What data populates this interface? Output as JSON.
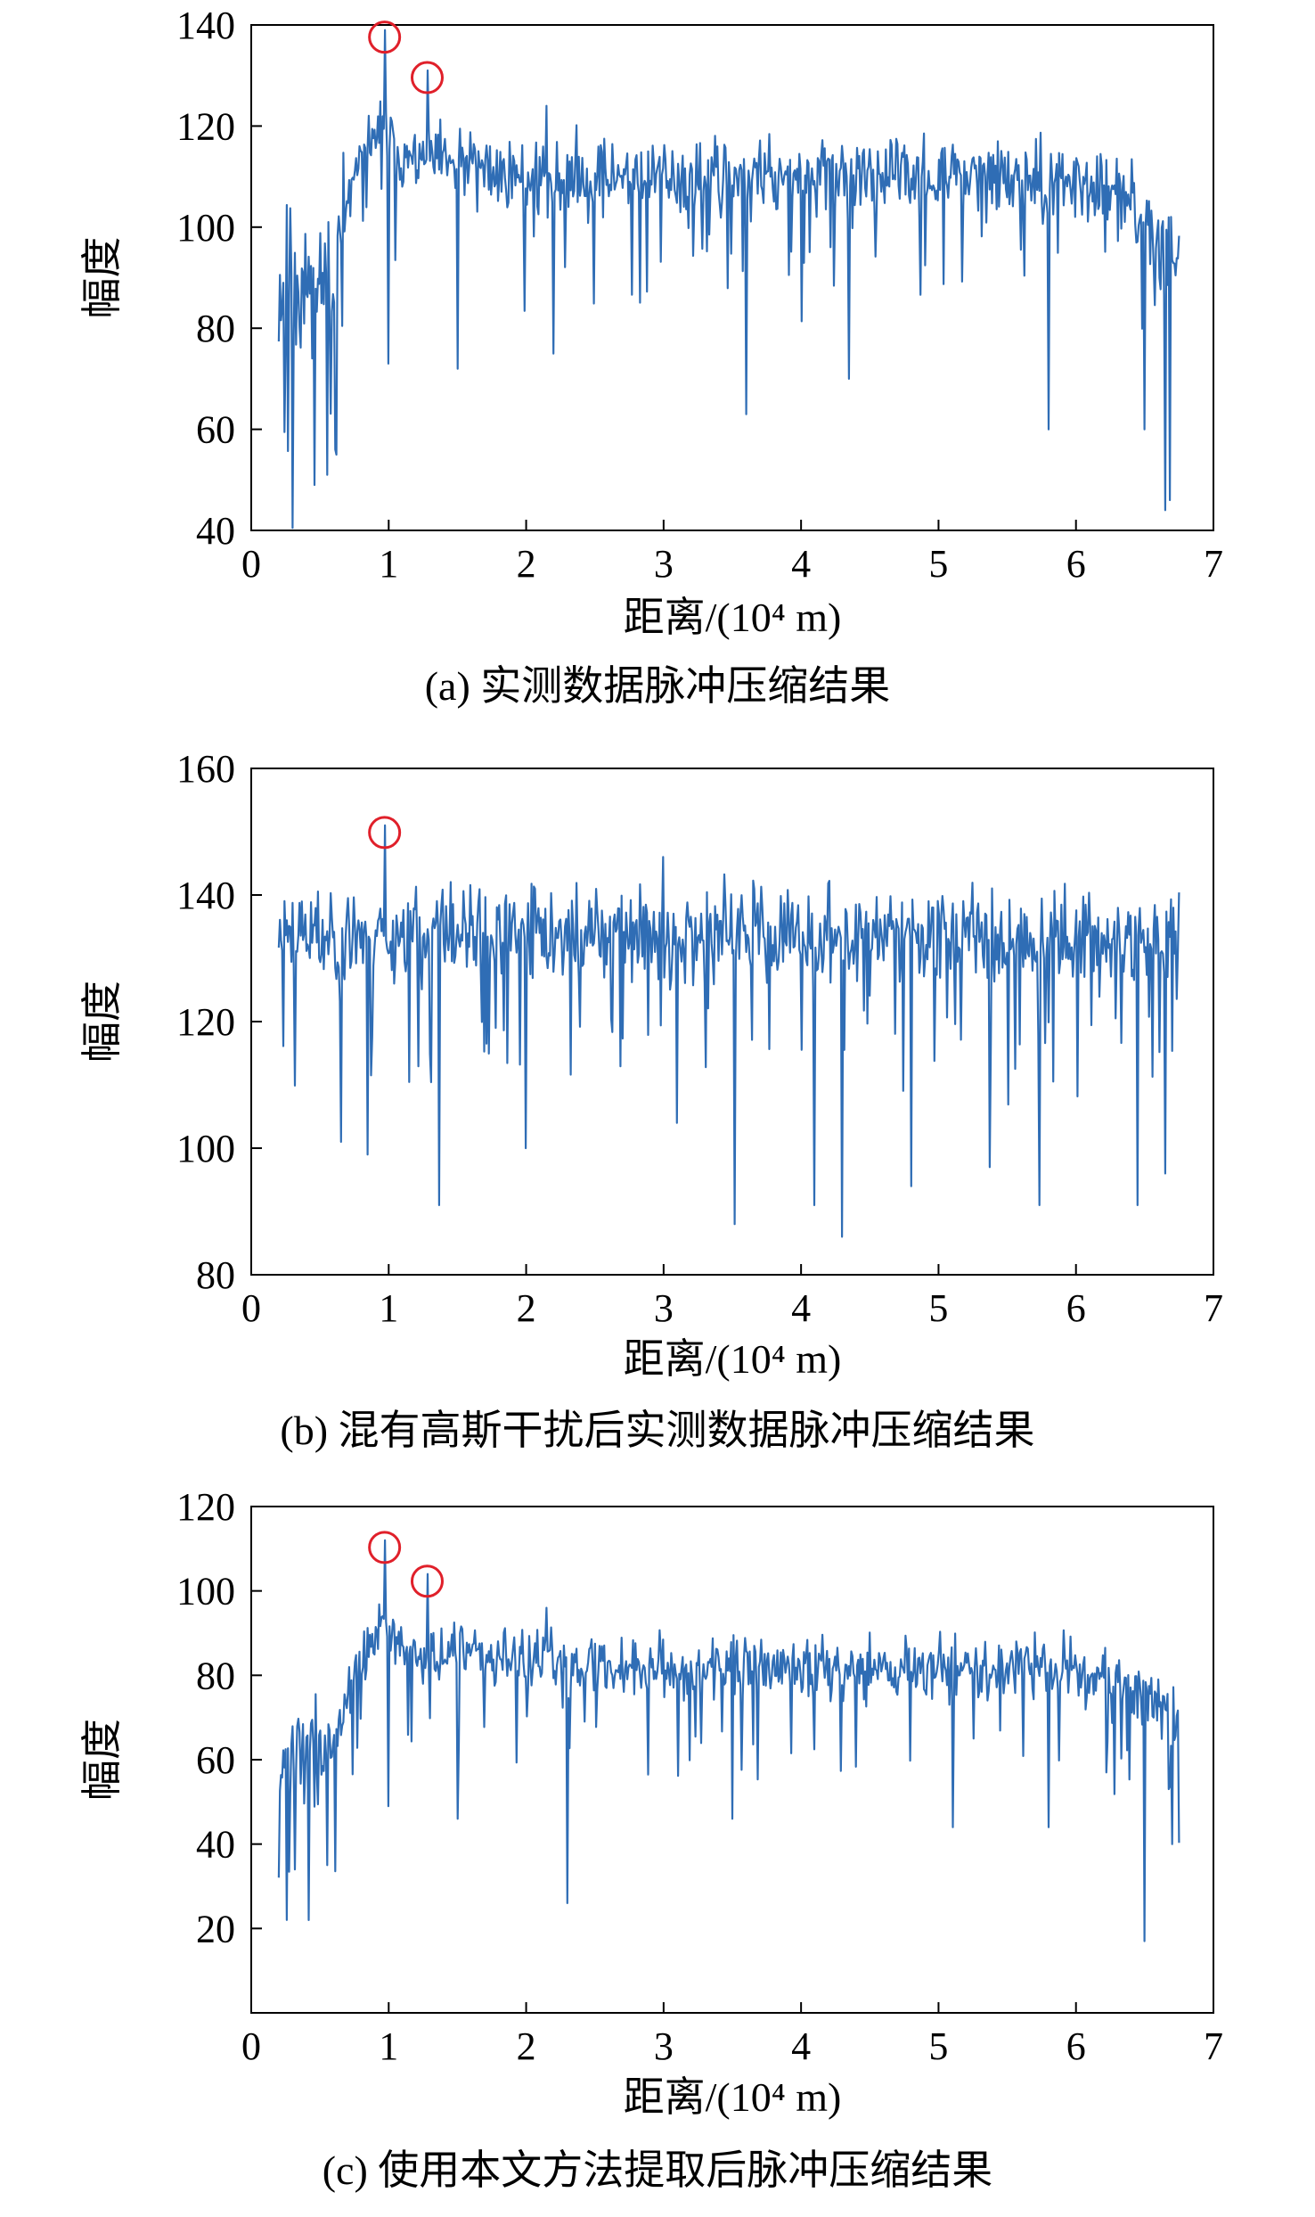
{
  "colors": {
    "series": "#2f6db5",
    "marker": "#e0202a",
    "axis": "#000000"
  },
  "chart_data": [
    {
      "type": "line",
      "caption": "(a) 实测数据脉冲压缩结果",
      "xlabel": "距离/(10⁴ m)",
      "ylabel": "幅度",
      "xlim": [
        0,
        7
      ],
      "ylim": [
        40,
        140
      ],
      "xticks": [
        0,
        1,
        2,
        3,
        4,
        5,
        6,
        7
      ],
      "yticks": [
        40,
        60,
        80,
        100,
        120,
        140
      ],
      "grid": false,
      "x_range": [
        0.2,
        6.75
      ],
      "profile": [
        [
          0.2,
          88,
          14
        ],
        [
          0.6,
          92,
          12
        ],
        [
          0.7,
          106,
          6
        ],
        [
          0.85,
          116,
          5
        ],
        [
          0.95,
          120,
          5
        ],
        [
          1.1,
          114,
          5
        ],
        [
          2.0,
          110,
          6
        ],
        [
          3.0,
          110,
          6
        ],
        [
          4.0,
          110,
          6
        ],
        [
          5.0,
          110,
          6
        ],
        [
          6.0,
          109,
          6
        ],
        [
          6.35,
          105,
          6
        ],
        [
          6.75,
          96,
          8
        ]
      ],
      "peaks": [
        {
          "x": 0.97,
          "y": 139
        },
        {
          "x": 1.28,
          "y": 131
        },
        {
          "x": 2.15,
          "y": 124
        }
      ],
      "dips": [
        {
          "x": 0.46,
          "y": 49
        },
        {
          "x": 0.55,
          "y": 51
        },
        {
          "x": 0.61,
          "y": 56
        },
        {
          "x": 1.0,
          "y": 73
        },
        {
          "x": 1.5,
          "y": 72
        },
        {
          "x": 2.2,
          "y": 75
        },
        {
          "x": 3.6,
          "y": 63
        },
        {
          "x": 4.35,
          "y": 70
        },
        {
          "x": 5.8,
          "y": 60
        },
        {
          "x": 6.5,
          "y": 60
        },
        {
          "x": 6.65,
          "y": 44
        },
        {
          "x": 6.68,
          "y": 46
        }
      ],
      "markers": [
        {
          "x": 0.97,
          "y": 139
        },
        {
          "x": 1.28,
          "y": 131
        }
      ],
      "seed": 11
    },
    {
      "type": "line",
      "caption": "(b) 混有高斯干扰后实测数据脉冲压缩结果",
      "xlabel": "距离/(10⁴ m)",
      "ylabel": "幅度",
      "xlim": [
        0,
        7
      ],
      "ylim": [
        80,
        160
      ],
      "xticks": [
        0,
        1,
        2,
        3,
        4,
        5,
        6,
        7
      ],
      "yticks": [
        80,
        100,
        120,
        140,
        160
      ],
      "grid": false,
      "x_range": [
        0.2,
        6.75
      ],
      "profile": [
        [
          0.2,
          134,
          6
        ],
        [
          3.0,
          134,
          6
        ],
        [
          6.75,
          133,
          6
        ]
      ],
      "peaks": [
        {
          "x": 0.97,
          "y": 151
        },
        {
          "x": 3.0,
          "y": 146
        },
        {
          "x": 4.3,
          "y": 145
        }
      ],
      "dips": [
        {
          "x": 0.65,
          "y": 101
        },
        {
          "x": 0.85,
          "y": 99
        },
        {
          "x": 1.37,
          "y": 91
        },
        {
          "x": 2.0,
          "y": 100
        },
        {
          "x": 3.1,
          "y": 104
        },
        {
          "x": 3.52,
          "y": 88
        },
        {
          "x": 4.1,
          "y": 91
        },
        {
          "x": 4.3,
          "y": 86
        },
        {
          "x": 4.8,
          "y": 94
        },
        {
          "x": 5.37,
          "y": 97
        },
        {
          "x": 5.73,
          "y": 91
        },
        {
          "x": 6.45,
          "y": 91
        },
        {
          "x": 6.65,
          "y": 96
        }
      ],
      "markers": [
        {
          "x": 0.97,
          "y": 151
        }
      ],
      "seed": 23
    },
    {
      "type": "line",
      "caption": "(c) 使用本文方法提取后脉冲压缩结果",
      "xlabel": "距离/(10⁴ m)",
      "ylabel": "幅度",
      "xlim": [
        0,
        7
      ],
      "ylim": [
        0,
        120
      ],
      "xticks": [
        0,
        1,
        2,
        3,
        4,
        5,
        6,
        7
      ],
      "yticks": [
        20,
        40,
        60,
        80,
        100,
        120
      ],
      "grid": false,
      "x_range": [
        0.2,
        6.75
      ],
      "profile": [
        [
          0.2,
          58,
          12
        ],
        [
          0.6,
          64,
          10
        ],
        [
          0.7,
          75,
          6
        ],
        [
          0.85,
          86,
          5
        ],
        [
          0.95,
          92,
          5
        ],
        [
          1.1,
          86,
          5
        ],
        [
          2.0,
          83,
          6
        ],
        [
          3.0,
          82,
          6
        ],
        [
          4.0,
          82,
          6
        ],
        [
          5.0,
          82,
          6
        ],
        [
          6.0,
          82,
          6
        ],
        [
          6.35,
          78,
          6
        ],
        [
          6.75,
          70,
          7
        ]
      ],
      "peaks": [
        {
          "x": 0.97,
          "y": 112
        },
        {
          "x": 1.28,
          "y": 104
        },
        {
          "x": 2.15,
          "y": 96
        }
      ],
      "dips": [
        {
          "x": 0.42,
          "y": 22
        },
        {
          "x": 0.32,
          "y": 34
        },
        {
          "x": 0.55,
          "y": 35
        },
        {
          "x": 1.0,
          "y": 49
        },
        {
          "x": 1.5,
          "y": 46
        },
        {
          "x": 2.3,
          "y": 26
        },
        {
          "x": 3.5,
          "y": 46
        },
        {
          "x": 5.1,
          "y": 44
        },
        {
          "x": 5.8,
          "y": 44
        },
        {
          "x": 6.5,
          "y": 17
        },
        {
          "x": 6.7,
          "y": 40
        }
      ],
      "markers": [
        {
          "x": 0.97,
          "y": 112
        },
        {
          "x": 1.28,
          "y": 104
        }
      ],
      "seed": 37
    }
  ]
}
